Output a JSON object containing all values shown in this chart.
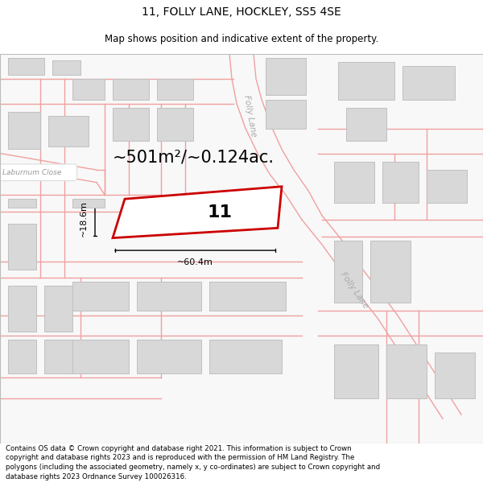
{
  "title": "11, FOLLY LANE, HOCKLEY, SS5 4SE",
  "subtitle": "Map shows position and indicative extent of the property.",
  "footer": "Contains OS data © Crown copyright and database right 2021. This information is subject to Crown copyright and database rights 2023 and is reproduced with the permission of HM Land Registry. The polygons (including the associated geometry, namely x, y co-ordinates) are subject to Crown copyright and database rights 2023 Ordnance Survey 100026316.",
  "area_label": "~501m²/~0.124ac.",
  "width_label": "~60.4m",
  "height_label": "~18.6m",
  "property_number": "11",
  "bg_color": "#ffffff",
  "map_bg": "#f9f9f9",
  "road_line_color": "#f0a0a0",
  "building_fill": "#d8d8d8",
  "building_outline": "#c0c0c0",
  "plot_outline": "#cc0000",
  "plot_fill": "#ffffff",
  "label_color": "#bbbbbb",
  "title_fontsize": 10,
  "subtitle_fontsize": 8.5,
  "footer_fontsize": 6.2,
  "area_fontsize": 15,
  "dim_fontsize": 8,
  "number_fontsize": 16,
  "road_label_fontsize": 7.5
}
